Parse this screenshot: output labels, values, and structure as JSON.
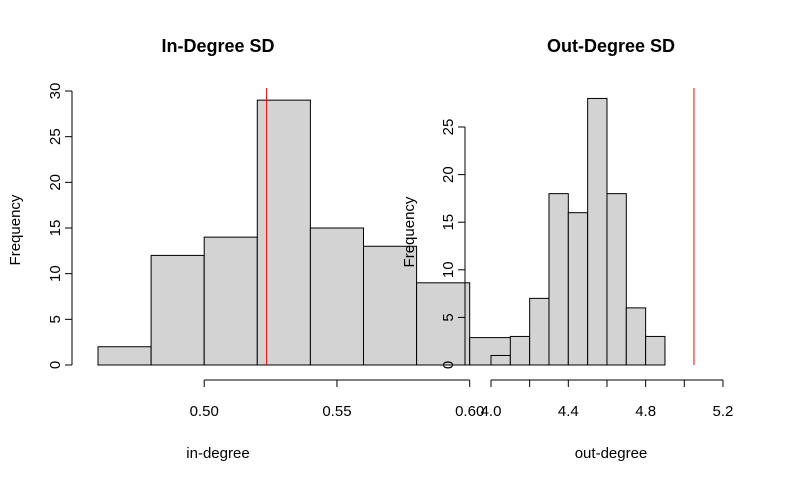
{
  "chart_data": [
    {
      "type": "bar",
      "title": "In-Degree SD",
      "xlabel": "in-degree",
      "ylabel": "Frequency",
      "bin_edges": [
        0.46,
        0.48,
        0.5,
        0.52,
        0.54,
        0.56,
        0.58,
        0.6,
        0.62,
        0.64
      ],
      "values": [
        2,
        12,
        14,
        29,
        15,
        13,
        9,
        3,
        3
      ],
      "xticks": [
        0.5,
        0.55,
        0.6
      ],
      "xtick_labels": [
        "0.50",
        "0.55",
        "0.60"
      ],
      "yticks": [
        0,
        5,
        10,
        15,
        20,
        25,
        30
      ],
      "ytick_labels": [
        "0",
        "5",
        "10",
        "15",
        "20",
        "25",
        "30"
      ],
      "reference_line": 0.5235,
      "reference_color": "#ff0000",
      "bar_color": "#d3d3d3",
      "grid": false
    },
    {
      "type": "bar",
      "title": "Out-Degree SD",
      "xlabel": "out-degree",
      "ylabel": "Frequency",
      "bin_edges": [
        4.0,
        4.1,
        4.2,
        4.3,
        4.4,
        4.5,
        4.6,
        4.7,
        4.8,
        4.9
      ],
      "values": [
        1,
        3,
        7,
        18,
        16,
        28,
        18,
        6,
        3
      ],
      "xticks": [
        4.0,
        4.4,
        4.8,
        5.2
      ],
      "xtick_labels": [
        "4.0",
        "4.4",
        "4.8",
        "5.2"
      ],
      "extra_xticks": [
        4.2,
        4.6,
        5.0
      ],
      "yticks": [
        0,
        5,
        10,
        15,
        20,
        25
      ],
      "ytick_labels": [
        "0",
        "5",
        "10",
        "15",
        "20",
        "25"
      ],
      "reference_line": 5.05,
      "reference_color": "#ff0000",
      "bar_color": "#d3d3d3",
      "grid": false
    }
  ]
}
